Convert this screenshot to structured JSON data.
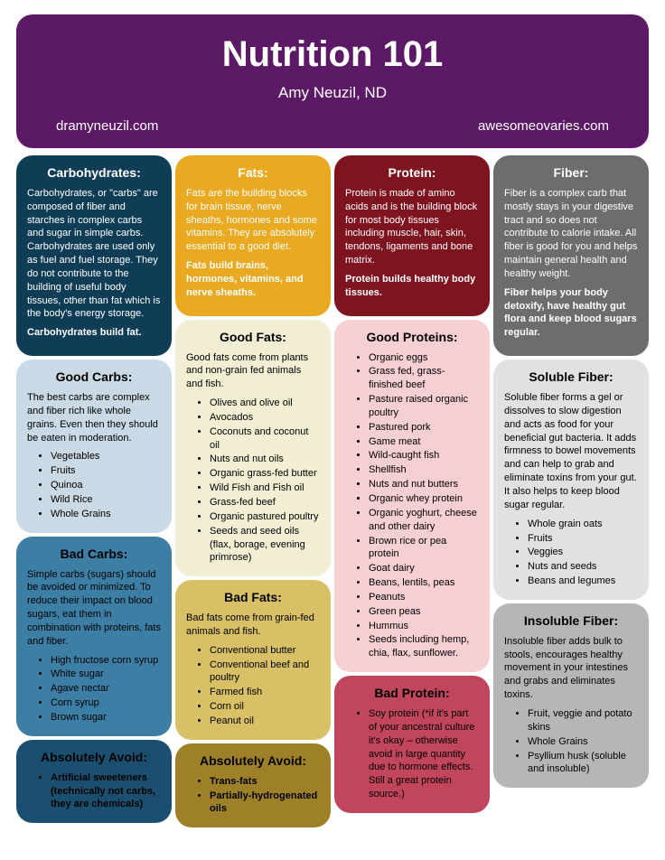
{
  "header": {
    "title": "Nutrition 101",
    "author": "Amy Neuzil, ND",
    "link_left": "dramyneuzil.com",
    "link_right": "awesomeovaries.com",
    "bg": "#5c1a66"
  },
  "columns": [
    [
      {
        "title": "Carbohydrates:",
        "bg": "#0f3d56",
        "fg": "#ffffff",
        "body": [
          {
            "t": "p",
            "v": "Carbohydrates, or \"carbs\" are composed of fiber and starches in complex carbs and sugar in simple carbs. Carbohydrates are used only as fuel and fuel storage. They do not contribute to the building of useful body tissues, other than fat which is the body's energy storage."
          },
          {
            "t": "p",
            "b": true,
            "v": "Carbohydrates build fat."
          }
        ]
      },
      {
        "title": "Good Carbs:",
        "bg": "#c9d9e5",
        "fg": "#000000",
        "body": [
          {
            "t": "p",
            "v": "The best carbs are complex and fiber rich like whole grains.  Even then they should be eaten in moderation."
          },
          {
            "t": "ul",
            "v": [
              "Vegetables",
              "Fruits",
              "Quinoa",
              "Wild Rice",
              "Whole Grains"
            ]
          }
        ]
      },
      {
        "title": "Bad Carbs:",
        "bg": "#3d7ea5",
        "fg": "#000000",
        "body": [
          {
            "t": "p",
            "v": "Simple carbs (sugars) should be avoided or minimized. To reduce their impact on blood sugars, eat them in combination with proteins, fats and fiber."
          },
          {
            "t": "ul",
            "v": [
              "High fructose corn syrup",
              "White sugar",
              "Agave nectar",
              "Corn syrup",
              "Brown sugar"
            ]
          }
        ]
      },
      {
        "title": "Absolutely Avoid:",
        "bg": "#1b4f6f",
        "fg": "#000000",
        "body": [
          {
            "t": "ul",
            "b": true,
            "v": [
              "Artificial sweeteners (technically not carbs, they are chemicals)"
            ]
          }
        ]
      }
    ],
    [
      {
        "title": "Fats:",
        "bg": "#e9a920",
        "fg": "#ffffff",
        "body": [
          {
            "t": "p",
            "v": "Fats are the building blocks for brain tissue, nerve sheaths, hormones and some vitamins. They are absolutely essential to a good diet."
          },
          {
            "t": "p",
            "b": true,
            "v": "Fats build brains, hormones, vitamins, and nerve sheaths."
          }
        ]
      },
      {
        "title": "Good Fats:",
        "bg": "#f1eed4",
        "fg": "#000000",
        "body": [
          {
            "t": "p",
            "v": "Good fats come from plants and non-grain fed animals and fish."
          },
          {
            "t": "ul",
            "v": [
              "Olives and olive oil",
              "Avocados",
              "Coconuts and coconut  oil",
              "Nuts and nut oils",
              "Organic grass-fed butter",
              "Wild Fish and Fish oil",
              "Grass-fed beef",
              "Organic  pastured poultry",
              "Seeds and seed oils (flax, borage, evening primrose)"
            ]
          }
        ]
      },
      {
        "title": "Bad Fats:",
        "bg": "#d7c066",
        "fg": "#000000",
        "body": [
          {
            "t": "p",
            "v": "Bad fats come from grain-fed animals and fish."
          },
          {
            "t": "ul",
            "v": [
              "Conventional butter",
              "Conventional beef and poultry",
              "Farmed fish",
              "Corn oil",
              "Peanut  oil"
            ]
          }
        ]
      },
      {
        "title": "Absolutely Avoid:",
        "bg": "#9e8028",
        "fg": "#000000",
        "body": [
          {
            "t": "ul",
            "b": true,
            "v": [
              "Trans-fats",
              "Partially-hydrogenated oils"
            ]
          }
        ]
      }
    ],
    [
      {
        "title": "Protein:",
        "bg": "#7f1421",
        "fg": "#ffffff",
        "body": [
          {
            "t": "p",
            "v": "Protein is made of amino acids and is the building block for most body tissues including muscle, hair, skin, tendons, ligaments and bone matrix."
          },
          {
            "t": "p",
            "b": true,
            "v": "Protein builds healthy body tissues."
          }
        ]
      },
      {
        "title": "Good Proteins:",
        "bg": "#f5cfd2",
        "fg": "#000000",
        "body": [
          {
            "t": "ul",
            "v": [
              "Organic eggs",
              "Grass fed, grass-finished beef",
              "Pasture raised organic poultry",
              "Pastured pork",
              "Game meat",
              "Wild-caught fish",
              "Shellfish",
              "Nuts and nut butters",
              "Organic whey protein",
              "Organic yoghurt, cheese and other dairy",
              "Brown rice or pea protein",
              "Goat dairy",
              "Beans, lentils,  peas",
              "Peanuts",
              "Green peas",
              "Hummus",
              "Seeds including hemp, chia, flax, sunflower."
            ]
          }
        ]
      },
      {
        "title": "Bad Protein:",
        "bg": "#c1455b",
        "fg": "#000000",
        "body": [
          {
            "t": "ul",
            "v": [
              "Soy protein (*if it's part of your ancestral culture it's okay – otherwise avoid in large quantity due to hormone effects. Still a great protein source.)"
            ]
          }
        ]
      }
    ],
    [
      {
        "title": "Fiber:",
        "bg": "#6d6d6d",
        "fg": "#ffffff",
        "body": [
          {
            "t": "p",
            "v": "Fiber is a complex carb that mostly stays in your digestive tract and so does not contribute to calorie intake. All fiber is good for you and helps maintain general health and healthy weight."
          },
          {
            "t": "p",
            "b": true,
            "v": "Fiber helps your body detoxify, have healthy gut flora and keep blood sugars regular."
          }
        ]
      },
      {
        "title": "Soluble Fiber:",
        "bg": "#e1e1e1",
        "fg": "#000000",
        "body": [
          {
            "t": "p",
            "v": "Soluble fiber forms a gel or dissolves to slow digestion and acts as food for your beneficial gut bacteria. It adds firmness to bowel movements and can help to grab and eliminate toxins from your gut. It also helps to keep blood sugar regular."
          },
          {
            "t": "ul",
            "v": [
              "Whole grain oats",
              "Fruits",
              "Veggies",
              "Nuts and seeds",
              "Beans and legumes"
            ]
          }
        ]
      },
      {
        "title": "Insoluble Fiber:",
        "bg": "#b6b6b6",
        "fg": "#000000",
        "body": [
          {
            "t": "p",
            "v": "Insoluble fiber adds bulk to stools, encourages healthy movement in your intestines and grabs and eliminates toxins."
          },
          {
            "t": "ul",
            "v": [
              "Fruit, veggie and potato skins",
              "Whole Grains",
              "Psyllium husk (soluble and insoluble)"
            ]
          }
        ]
      }
    ]
  ]
}
